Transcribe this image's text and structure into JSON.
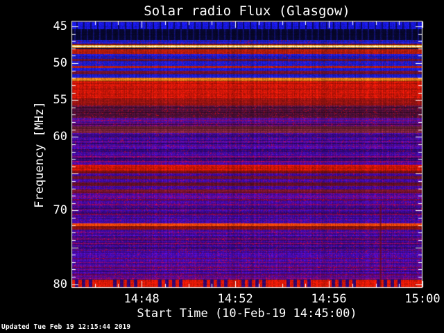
{
  "title": "Solar radio Flux (Glasgow)",
  "footer": "Updated Tue Feb 19 12:15:44 2019",
  "palette": {
    "background": "#000000",
    "frame": "#ffffff",
    "text": "#ffffff"
  },
  "axes": {
    "x": {
      "label": "Start Time (10-Feb-19 14:45:00)",
      "start_time": "14:45:00",
      "end_time": "15:00:00",
      "range_minutes": [
        0,
        15
      ],
      "minor_tick_every_minutes": 1,
      "ticks": [
        {
          "label": "14:48",
          "minutes": 3
        },
        {
          "label": "14:52",
          "minutes": 7
        },
        {
          "label": "14:56",
          "minutes": 11
        },
        {
          "label": "15:00",
          "minutes": 15
        }
      ]
    },
    "y": {
      "label": "Frequency [MHz]",
      "range_mhz": [
        44.25,
        80.5
      ],
      "direction": "increasing-downward",
      "minor_tick_every_mhz": 1,
      "major_tick_every_mhz": 5,
      "unlabeled_major_ticks_mhz": [
        65,
        75
      ],
      "ticks": [
        {
          "label": "45",
          "mhz": 45
        },
        {
          "label": "50",
          "mhz": 50
        },
        {
          "label": "55",
          "mhz": 55
        },
        {
          "label": "60",
          "mhz": 60
        },
        {
          "label": "70",
          "mhz": 70
        },
        {
          "label": "80",
          "mhz": 80
        }
      ]
    }
  },
  "chart_data": {
    "type": "heatmap",
    "title": "Solar radio Flux (Glasgow)",
    "xlabel": "Start Time (10-Feb-19 14:45:00)",
    "ylabel": "Frequency [MHz]",
    "x_range_time": [
      "14:45:00",
      "15:00:00"
    ],
    "y_range_mhz": [
      44.25,
      80.5
    ],
    "description": "Dynamic radio spectrum dominated by horizontal interference bands; no strong time-variable burst, roughly constant stripes across the whole 15-minute window.",
    "bands": [
      {
        "f0": 44.25,
        "f1": 44.45,
        "color": "#1c0f4a",
        "style": "speckle"
      },
      {
        "f0": 44.45,
        "f1": 45.35,
        "color": "#1717e2",
        "style": "vdark"
      },
      {
        "f0": 45.35,
        "f1": 46.85,
        "color": "#07072e",
        "style": "vlight"
      },
      {
        "f0": 46.85,
        "f1": 47.35,
        "color": "#1c1ccd",
        "style": "speckle"
      },
      {
        "f0": 47.35,
        "f1": 47.55,
        "color": "#701014",
        "style": "plain"
      },
      {
        "f0": 47.55,
        "f1": 47.66,
        "color": "#e8a428",
        "style": "plain"
      },
      {
        "f0": 47.66,
        "f1": 47.8,
        "color": "#fbfbc8",
        "style": "plain"
      },
      {
        "f0": 47.8,
        "f1": 47.95,
        "color": "#d87414",
        "style": "plain"
      },
      {
        "f0": 47.95,
        "f1": 48.15,
        "color": "#0d0d38",
        "style": "plain"
      },
      {
        "f0": 48.15,
        "f1": 48.75,
        "color": "#bb1c0c",
        "style": "plain"
      },
      {
        "f0": 48.75,
        "f1": 49.45,
        "color": "#1a1ac8",
        "style": "speckle"
      },
      {
        "f0": 49.45,
        "f1": 49.75,
        "color": "#68122e",
        "style": "plain"
      },
      {
        "f0": 49.75,
        "f1": 50.35,
        "color": "#1a1ac8",
        "style": "speckle"
      },
      {
        "f0": 50.35,
        "f1": 50.65,
        "color": "#b01e10",
        "style": "plain"
      },
      {
        "f0": 50.65,
        "f1": 51.0,
        "color": "#1818c4",
        "style": "plain"
      },
      {
        "f0": 51.0,
        "f1": 51.5,
        "color": "#6e1230",
        "style": "plain"
      },
      {
        "f0": 51.5,
        "f1": 51.95,
        "color": "#1a1ac8",
        "style": "plain"
      },
      {
        "f0": 51.95,
        "f1": 52.4,
        "color": "#e07a18",
        "style": "plain"
      },
      {
        "f0": 52.4,
        "f1": 54.8,
        "color": "#c41508",
        "style": "plain"
      },
      {
        "f0": 54.8,
        "f1": 55.7,
        "color": "#8e1210",
        "style": "plain"
      },
      {
        "f0": 55.7,
        "f1": 57.4,
        "color": "#5a1242",
        "style": "rows speckle"
      },
      {
        "f0": 57.4,
        "f1": 58.6,
        "color": "#4a0d96",
        "style": "redrows speckle"
      },
      {
        "f0": 58.6,
        "f1": 59.5,
        "color": "#76203a",
        "style": "rows"
      },
      {
        "f0": 59.5,
        "f1": 63.8,
        "color": "#430aa6",
        "style": "rows redrows speckle"
      },
      {
        "f0": 63.8,
        "f1": 64.55,
        "color": "#d01606",
        "style": "plain"
      },
      {
        "f0": 64.55,
        "f1": 64.95,
        "color": "#7c0e12",
        "style": "plain"
      },
      {
        "f0": 64.95,
        "f1": 65.3,
        "color": "#430aa6",
        "style": "speckle"
      },
      {
        "f0": 65.3,
        "f1": 65.75,
        "color": "#6a102a",
        "style": "plain"
      },
      {
        "f0": 65.75,
        "f1": 66.2,
        "color": "#430aa6",
        "style": "speckle"
      },
      {
        "f0": 66.2,
        "f1": 66.65,
        "color": "#6a102a",
        "style": "plain"
      },
      {
        "f0": 66.65,
        "f1": 67.1,
        "color": "#430aa6",
        "style": "speckle"
      },
      {
        "f0": 67.1,
        "f1": 67.6,
        "color": "#72122c",
        "style": "plain"
      },
      {
        "f0": 67.6,
        "f1": 71.7,
        "color": "#430aa6",
        "style": "rows redrows speckle"
      },
      {
        "f0": 71.7,
        "f1": 72.15,
        "color": "#ea4208",
        "style": "plain"
      },
      {
        "f0": 72.15,
        "f1": 72.6,
        "color": "#86100e",
        "style": "plain"
      },
      {
        "f0": 72.6,
        "f1": 79.35,
        "color": "#430aa6",
        "style": "rows redrows speckle"
      },
      {
        "f0": 79.35,
        "f1": 80.5,
        "color": "#2e0668",
        "style": "dashes",
        "dash_color": "#cc1606"
      }
    ],
    "artifacts": [
      {
        "kind": "vertical-streak",
        "minutes_from_start": 13.2,
        "f0_mhz": 69.3,
        "f1_mhz": 80.5,
        "color": "#8c140a"
      }
    ]
  }
}
